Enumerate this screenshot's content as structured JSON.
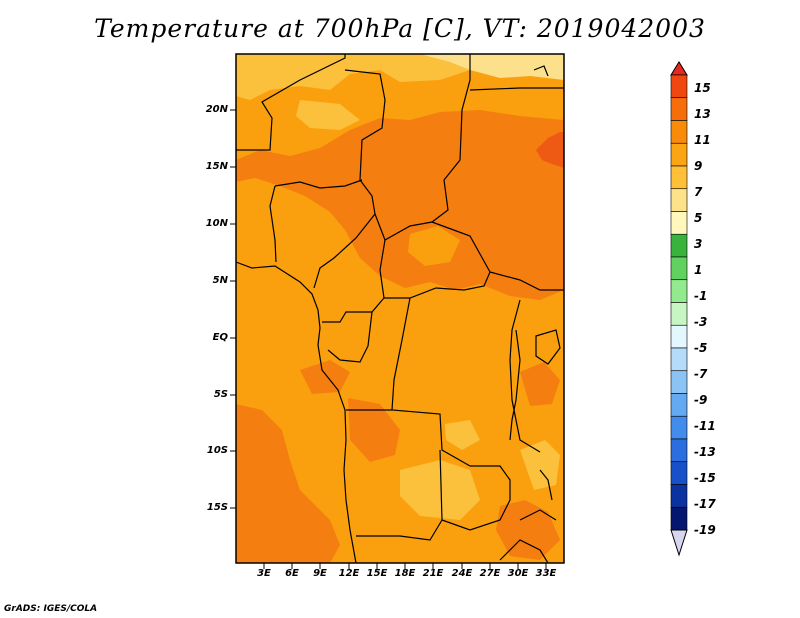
{
  "title": "Temperature at 700hPa [C], VT: 2019042003",
  "credit": "GrADS: IGES/COLA",
  "map": {
    "lat_labels": [
      "20N",
      "15N",
      "10N",
      "5N",
      "EQ",
      "5S",
      "10S",
      "15S"
    ],
    "lat_values": [
      20,
      15,
      10,
      5,
      0,
      -5,
      -10,
      -15
    ],
    "lon_labels": [
      "3E",
      "6E",
      "9E",
      "12E",
      "15E",
      "18E",
      "21E",
      "24E",
      "27E",
      "30E",
      "33E"
    ],
    "lon_values": [
      3,
      6,
      9,
      12,
      15,
      18,
      21,
      24,
      27,
      30,
      33
    ]
  },
  "colorbar": {
    "labels": [
      "15",
      "13",
      "11",
      "9",
      "7",
      "5",
      "3",
      "1",
      "-1",
      "-3",
      "-5",
      "-7",
      "-9",
      "-11",
      "-13",
      "-15",
      "-17",
      "-19"
    ],
    "colors_top_to_bottom": [
      "#e8281e",
      "#f0460f",
      "#f56e0a",
      "#f88c0a",
      "#fba514",
      "#fdc038",
      "#fee28a",
      "#fff7bc",
      "#38b43c",
      "#5fd25f",
      "#93e98e",
      "#c8f5c4",
      "#e3f7ff",
      "#b4dcfa",
      "#8cc3f5",
      "#64aaf0",
      "#418cec",
      "#2a6ee0",
      "#1750c8",
      "#0a32a0",
      "#05166e",
      "#d6d6f0"
    ]
  },
  "colors": {
    "temp_9": "#faa00f",
    "temp_11": "#f57e10",
    "temp_13": "#ee5a13",
    "temp_7": "#fbc03c",
    "temp_5": "#fde08c"
  }
}
